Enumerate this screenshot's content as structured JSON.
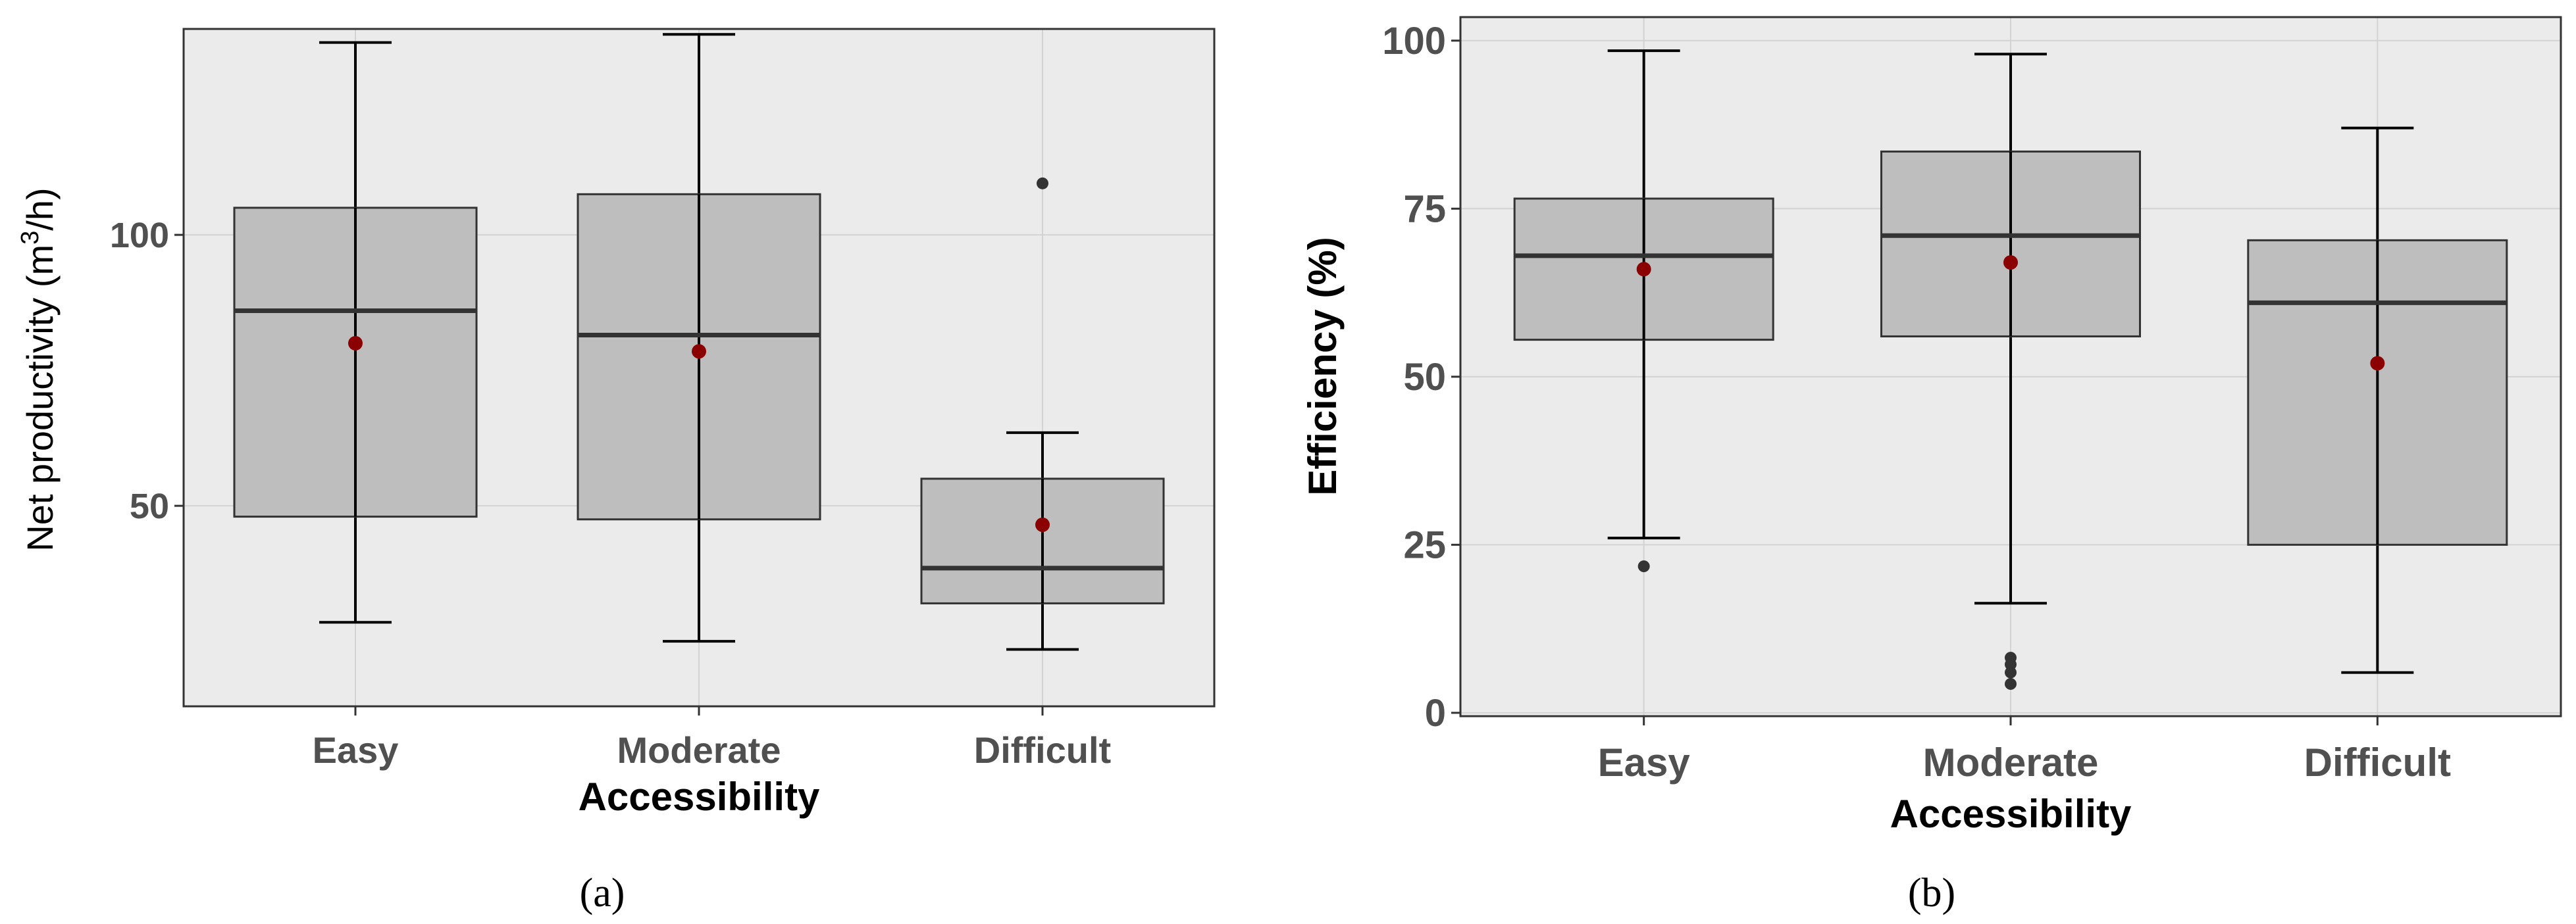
{
  "colors": {
    "panel_bg": "#ebebeb",
    "grid": "#d3d3d3",
    "box_fill": "#bebebe",
    "box_stroke": "#333333",
    "mean_point": "#8b0000",
    "outlier": "#333333",
    "tick_text": "#505050"
  },
  "chart_data": [
    {
      "type": "box",
      "panel_label": "(a)",
      "ylabel_main": "Net productivity (m",
      "ylabel_sup": "3",
      "ylabel_tail": "/h)",
      "xlabel": "Accessibility",
      "categories": [
        "Easy",
        "Moderate",
        "Difficult"
      ],
      "ylim": [
        13,
        138
      ],
      "yticks": [
        50,
        100
      ],
      "grid": true,
      "boxes": [
        {
          "category": "Easy",
          "whisker_low": 28.5,
          "q1": 48,
          "median": 86,
          "q3": 105,
          "whisker_high": 135.5,
          "mean": 80,
          "outliers": []
        },
        {
          "category": "Moderate",
          "whisker_low": 25,
          "q1": 47.5,
          "median": 81.5,
          "q3": 107.5,
          "whisker_high": 137,
          "mean": 78.5,
          "outliers": []
        },
        {
          "category": "Difficult",
          "whisker_low": 23.5,
          "q1": 32,
          "median": 38.5,
          "q3": 55,
          "whisker_high": 63.5,
          "mean": 46.5,
          "outliers": [
            109.5
          ]
        }
      ]
    },
    {
      "type": "box",
      "panel_label": "(b)",
      "ylabel_main": "Efficiency (%)",
      "ylabel_sup": "",
      "ylabel_tail": "",
      "xlabel": "Accessibility",
      "categories": [
        "Easy",
        "Moderate",
        "Difficult"
      ],
      "ylim": [
        -0.5,
        103.5
      ],
      "yticks": [
        0,
        25,
        50,
        75,
        100
      ],
      "grid": true,
      "boxes": [
        {
          "category": "Easy",
          "whisker_low": 26,
          "q1": 55.5,
          "median": 68,
          "q3": 76.5,
          "whisker_high": 98.5,
          "mean": 66,
          "outliers": [
            21.8
          ]
        },
        {
          "category": "Moderate",
          "whisker_low": 16.3,
          "q1": 56,
          "median": 71,
          "q3": 83.5,
          "whisker_high": 98,
          "mean": 67,
          "outliers": [
            8.2,
            7.2,
            6.0,
            4.3
          ]
        },
        {
          "category": "Difficult",
          "whisker_low": 6,
          "q1": 25,
          "median": 61,
          "q3": 70.3,
          "whisker_high": 87,
          "mean": 52,
          "outliers": []
        }
      ]
    }
  ]
}
